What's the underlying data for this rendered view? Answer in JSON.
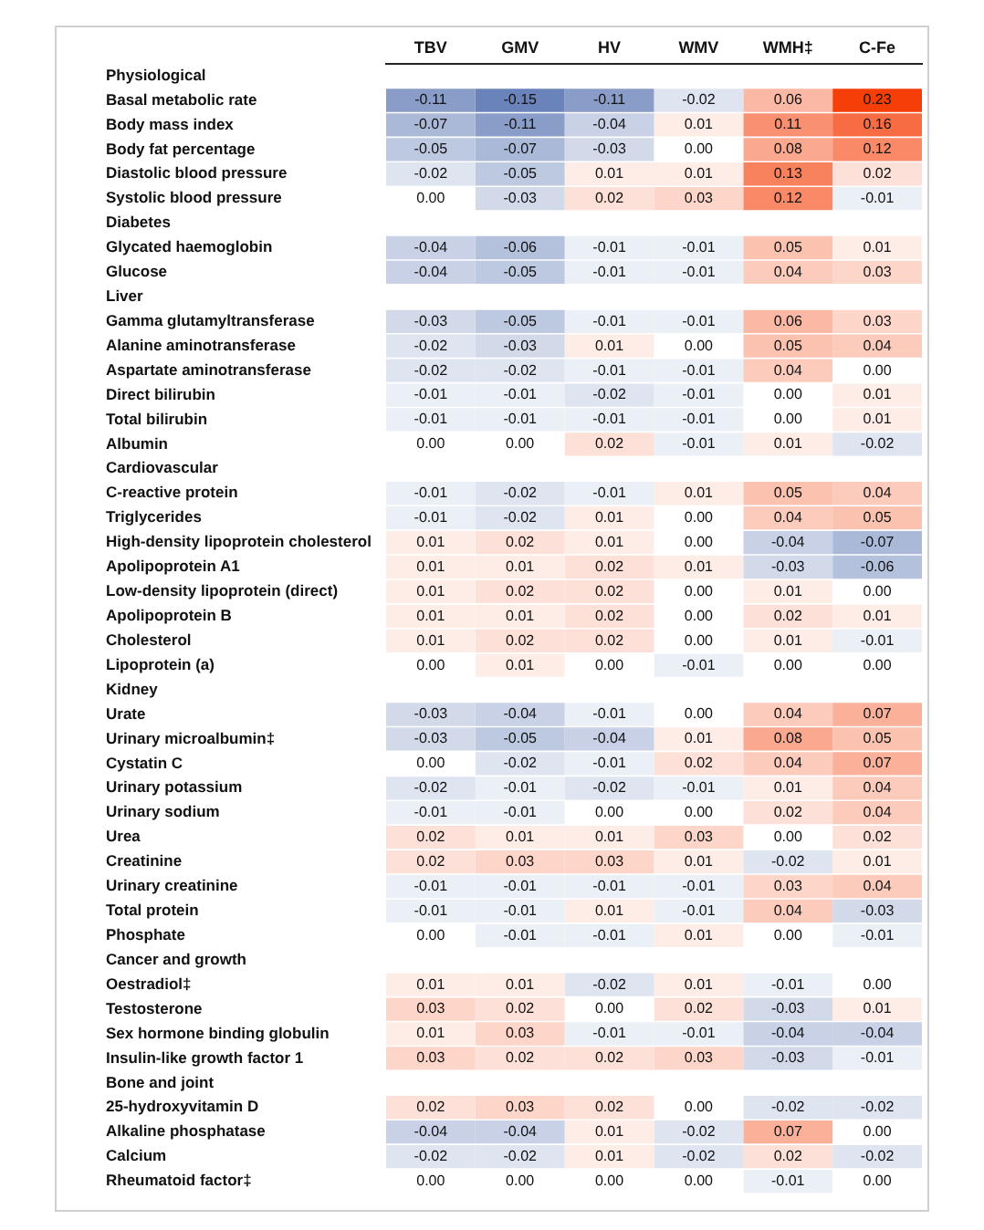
{
  "chart_data": {
    "type": "heatmap",
    "categories": [
      "TBV",
      "GMV",
      "HV",
      "WMV",
      "WMH‡",
      "C-Fe"
    ],
    "y_categories": [
      "Physiological",
      "Basal metabolic rate",
      "Body mass index",
      "Body fat percentage",
      "Diastolic blood pressure",
      "Systolic blood pressure",
      "Diabetes",
      "Glycated haemoglobin",
      "Glucose",
      "Liver",
      "Gamma glutamyltransferase",
      "Alanine aminotransferase",
      "Aspartate aminotransferase",
      "Direct bilirubin",
      "Total bilirubin",
      "Albumin",
      "Cardiovascular",
      "C-reactive protein",
      "Triglycerides",
      "High-density lipoprotein cholesterol",
      "Apolipoprotein A1",
      "Low-density lipoprotein (direct)",
      "Apolipoprotein B",
      "Cholesterol",
      "Lipoprotein (a)",
      "Kidney",
      "Urate",
      "Urinary microalbumin‡",
      "Cystatin C",
      "Urinary potassium",
      "Urinary sodium",
      "Urea",
      "Creatinine",
      "Urinary creatinine",
      "Total protein",
      "Phosphate",
      "Cancer and growth",
      "Oestradiol‡",
      "Testosterone",
      "Sex hormone binding globulin",
      "Insulin-like growth factor 1",
      "Bone and joint",
      "25-hydroxyvitamin D",
      "Alkaline phosphatase",
      "Calcium",
      "Rheumatoid factor‡"
    ],
    "cells": [
      [
        null,
        null,
        null,
        null,
        null,
        null
      ],
      [
        -0.11,
        -0.15,
        -0.11,
        -0.02,
        0.06,
        0.23
      ],
      [
        -0.07,
        -0.11,
        -0.04,
        0.01,
        0.11,
        0.16
      ],
      [
        -0.05,
        -0.07,
        -0.03,
        0.0,
        0.08,
        0.12
      ],
      [
        -0.02,
        -0.05,
        0.01,
        0.01,
        0.13,
        0.02
      ],
      [
        0.0,
        -0.03,
        0.02,
        0.03,
        0.12,
        -0.01
      ],
      [
        null,
        null,
        null,
        null,
        null,
        null
      ],
      [
        -0.04,
        -0.06,
        -0.01,
        -0.01,
        0.05,
        0.01
      ],
      [
        -0.04,
        -0.05,
        -0.01,
        -0.01,
        0.04,
        0.03
      ],
      [
        null,
        null,
        null,
        null,
        null,
        null
      ],
      [
        -0.03,
        -0.05,
        -0.01,
        -0.01,
        0.06,
        0.03
      ],
      [
        -0.02,
        -0.03,
        0.01,
        0.0,
        0.05,
        0.04
      ],
      [
        -0.02,
        -0.02,
        -0.01,
        -0.01,
        0.04,
        0.0
      ],
      [
        -0.01,
        -0.01,
        -0.02,
        -0.01,
        0.0,
        0.01
      ],
      [
        -0.01,
        -0.01,
        -0.01,
        -0.01,
        0.0,
        0.01
      ],
      [
        0.0,
        0.0,
        0.02,
        -0.01,
        0.01,
        -0.02
      ],
      [
        null,
        null,
        null,
        null,
        null,
        null
      ],
      [
        -0.01,
        -0.02,
        -0.01,
        0.01,
        0.05,
        0.04
      ],
      [
        -0.01,
        -0.02,
        0.01,
        0.0,
        0.04,
        0.05
      ],
      [
        0.01,
        0.02,
        0.01,
        0.0,
        -0.04,
        -0.07
      ],
      [
        0.01,
        0.01,
        0.02,
        0.01,
        -0.03,
        -0.06
      ],
      [
        0.01,
        0.02,
        0.02,
        0.0,
        0.01,
        0.0
      ],
      [
        0.01,
        0.01,
        0.02,
        0.0,
        0.02,
        0.01
      ],
      [
        0.01,
        0.02,
        0.02,
        0.0,
        0.01,
        -0.01
      ],
      [
        0.0,
        0.01,
        0.0,
        -0.01,
        0.0,
        0.0
      ],
      [
        null,
        null,
        null,
        null,
        null,
        null
      ],
      [
        -0.03,
        -0.04,
        -0.01,
        0.0,
        0.04,
        0.07
      ],
      [
        -0.03,
        -0.05,
        -0.04,
        0.01,
        0.08,
        0.05
      ],
      [
        0.0,
        -0.02,
        -0.01,
        0.02,
        0.04,
        0.07
      ],
      [
        -0.02,
        -0.01,
        -0.02,
        -0.01,
        0.01,
        0.04
      ],
      [
        -0.01,
        -0.01,
        0.0,
        0.0,
        0.02,
        0.04
      ],
      [
        0.02,
        0.01,
        0.01,
        0.03,
        0.0,
        0.02
      ],
      [
        0.02,
        0.03,
        0.03,
        0.01,
        -0.02,
        0.01
      ],
      [
        -0.01,
        -0.01,
        -0.01,
        -0.01,
        0.03,
        0.04
      ],
      [
        -0.01,
        -0.01,
        0.01,
        -0.01,
        0.04,
        -0.03
      ],
      [
        0.0,
        -0.01,
        -0.01,
        0.01,
        0.0,
        -0.01
      ],
      [
        null,
        null,
        null,
        null,
        null,
        null
      ],
      [
        0.01,
        0.01,
        -0.02,
        0.01,
        -0.01,
        0.0
      ],
      [
        0.03,
        0.02,
        0.0,
        0.02,
        -0.03,
        0.01
      ],
      [
        0.01,
        0.03,
        -0.01,
        -0.01,
        -0.04,
        -0.04
      ],
      [
        0.03,
        0.02,
        0.02,
        0.03,
        -0.03,
        -0.01
      ],
      [
        null,
        null,
        null,
        null,
        null,
        null
      ],
      [
        0.02,
        0.03,
        0.02,
        0.0,
        -0.02,
        -0.02
      ],
      [
        -0.04,
        -0.04,
        0.01,
        -0.02,
        0.07,
        0.0
      ],
      [
        -0.02,
        -0.02,
        0.01,
        -0.02,
        0.02,
        -0.02
      ],
      [
        0.0,
        0.0,
        0.0,
        0.0,
        -0.01,
        0.0
      ]
    ],
    "cell_labels": [
      [
        null,
        null,
        null,
        null,
        null,
        null
      ],
      [
        "-0.11",
        "-0.15",
        "-0.11",
        "-0.02",
        "0.06",
        "0.23"
      ],
      [
        "-0.07",
        "-0.11",
        "-0.04",
        "0.01",
        "0.11",
        "0.16"
      ],
      [
        "-0.05",
        "-0.07",
        "-0.03",
        "0.00",
        "0.08",
        "0.12"
      ],
      [
        "-0.02",
        "-0.05",
        "0.01",
        "0.01",
        "0.13",
        "0.02"
      ],
      [
        "0.00",
        "-0.03",
        "0.02",
        "0.03",
        "0.12",
        "-0.01"
      ],
      [
        null,
        null,
        null,
        null,
        null,
        null
      ],
      [
        "-0.04",
        "-0.06",
        "-0.01",
        "-0.01",
        "0.05",
        "0.01"
      ],
      [
        "-0.04",
        "-0.05",
        "-0.01",
        "-0.01",
        "0.04",
        "0.03"
      ],
      [
        null,
        null,
        null,
        null,
        null,
        null
      ],
      [
        "-0.03",
        "-0.05",
        "-0.01",
        "-0.01",
        "0.06",
        "0.03"
      ],
      [
        "-0.02",
        "-0.03",
        "0.01",
        "0.00",
        "0.05",
        "0.04"
      ],
      [
        "-0.02",
        "-0.02",
        "-0.01",
        "-0.01",
        "0.04",
        "0.00"
      ],
      [
        "-0.01",
        "-0.01",
        "-0.02",
        "-0.01",
        "0.00",
        "0.01"
      ],
      [
        "-0.01",
        "-0.01",
        "-0.01",
        "-0.01",
        "0.00",
        "0.01"
      ],
      [
        "0.00",
        "0.00",
        "0.02",
        "-0.01",
        "0.01",
        "-0.02"
      ],
      [
        null,
        null,
        null,
        null,
        null,
        null
      ],
      [
        "-0.01",
        "-0.02",
        "-0.01",
        "0.01",
        "0.05",
        "0.04"
      ],
      [
        "-0.01",
        "-0.02",
        "0.01",
        "0.00",
        "0.04",
        "0.05"
      ],
      [
        "0.01",
        "0.02",
        "0.01",
        "0.00",
        "-0.04",
        "-0.07"
      ],
      [
        "0.01",
        "0.01",
        "0.02",
        "0.01",
        "-0.03",
        "-0.06"
      ],
      [
        "0.01",
        "0.02",
        "0.02",
        "0.00",
        "0.01",
        "0.00"
      ],
      [
        "0.01",
        "0.01",
        "0.02",
        "0.00",
        "0.02",
        "0.01"
      ],
      [
        "0.01",
        "0.02",
        "0.02",
        "0.00",
        "0.01",
        "-0.01"
      ],
      [
        "0.00",
        "0.01",
        "0.00",
        "-0.01",
        "0.00",
        "0.00"
      ],
      [
        null,
        null,
        null,
        null,
        null,
        null
      ],
      [
        "-0.03",
        "-0.04",
        "-0.01",
        "0.00",
        "0.04",
        "0.07"
      ],
      [
        "-0.03",
        "-0.05",
        "-0.04",
        "0.01",
        "0.08",
        "0.05"
      ],
      [
        "0.00",
        "-0.02",
        "-0.01",
        "0.02",
        "0.04",
        "0.07"
      ],
      [
        "-0.02",
        "-0.01",
        "-0.02",
        "-0.01",
        "0.01",
        "0.04"
      ],
      [
        "-0.01",
        "-0.01",
        "0.00",
        "0.00",
        "0.02",
        "0.04"
      ],
      [
        "0.02",
        "0.01",
        "0.01",
        "0.03",
        "0.00",
        "0.02"
      ],
      [
        "0.02",
        "0.03",
        "0.03",
        "0.01",
        "-0.02",
        "0.01"
      ],
      [
        "-0.01",
        "-0.01",
        "-0.01",
        "-0.01",
        "0.03",
        "0.04"
      ],
      [
        "-0.01",
        "-0.01",
        "0.01",
        "-0.01",
        "0.04",
        "-0.03"
      ],
      [
        "0.00",
        "-0.01",
        "-0.01",
        "0.01",
        "0.00",
        "-0.01"
      ],
      [
        null,
        null,
        null,
        null,
        null,
        null
      ],
      [
        "0.01",
        "0.01",
        "-0.02",
        "0.01",
        "-0.01",
        "0.00"
      ],
      [
        "0.03",
        "0.02",
        "0.00",
        "0.02",
        "-0.03",
        "0.01"
      ],
      [
        "0.01",
        "0.03",
        "-0.01",
        "-0.01",
        "-0.04",
        "-0.04"
      ],
      [
        "0.03",
        "0.02",
        "0.02",
        "0.03",
        "-0.03",
        "-0.01"
      ],
      [
        null,
        null,
        null,
        null,
        null,
        null
      ],
      [
        "0.02",
        "0.03",
        "0.02",
        "0.00",
        "-0.02",
        "-0.02"
      ],
      [
        "-0.04",
        "-0.04",
        "0.01",
        "-0.02",
        "0.07",
        "0.00"
      ],
      [
        "-0.02",
        "-0.02",
        "0.01",
        "-0.02",
        "0.02",
        "-0.02"
      ],
      [
        "0.00",
        "0.00",
        "0.00",
        "0.00",
        "-0.01",
        "0.00"
      ]
    ]
  }
}
